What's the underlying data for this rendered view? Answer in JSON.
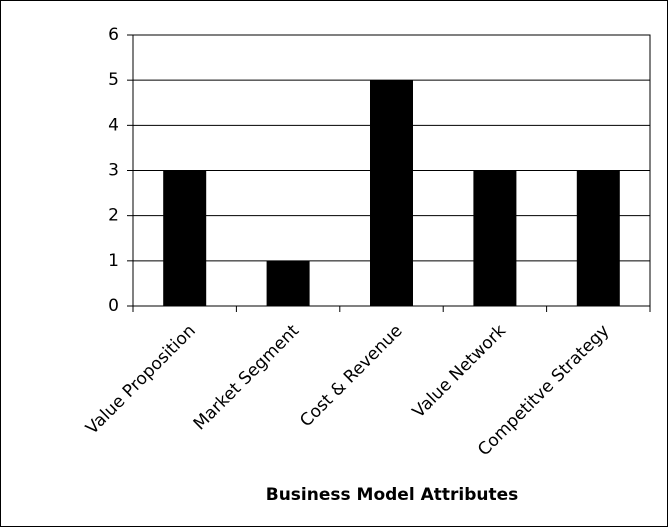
{
  "chart_data": {
    "type": "bar",
    "x_label": "Business Model Attributes",
    "categories": [
      "Value Proposition",
      "Market Segment",
      "Cost & Revenue",
      "Value Network",
      "Competitve Strategy"
    ],
    "values": [
      3,
      1,
      5,
      3,
      3
    ],
    "color": "#000000",
    "ylim": [
      0,
      6
    ],
    "yticks": [
      0,
      1,
      2,
      3,
      4,
      5,
      6
    ],
    "grid": true
  }
}
